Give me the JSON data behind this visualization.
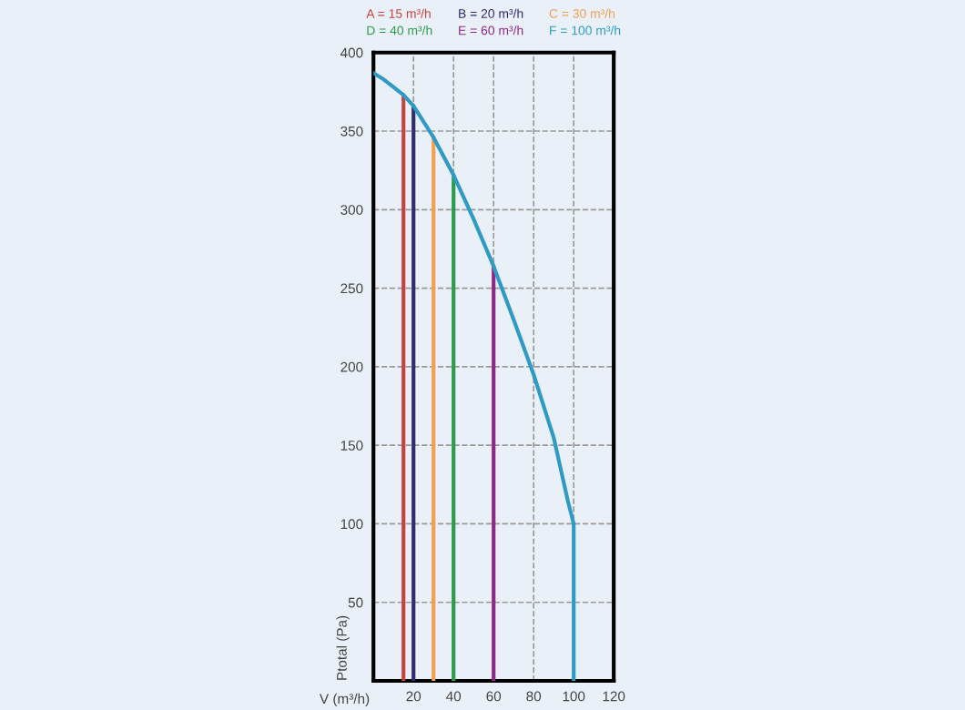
{
  "chart_data": {
    "type": "line",
    "xlabel": "V (m³/h)",
    "ylabel": "Ptotal (Pa)",
    "xlim": [
      0,
      120
    ],
    "xticks": [
      20,
      40,
      60,
      80,
      100,
      120
    ],
    "ylim": [
      0,
      400
    ],
    "yticks": [
      50,
      100,
      150,
      200,
      250,
      300,
      350,
      400
    ],
    "grid": true,
    "legend": "top",
    "line_style": "solid",
    "marker": "none",
    "series": [
      {
        "name": "A = 15 m³/h",
        "color": "#c8423f",
        "x": [
          15,
          15
        ],
        "values": [
          0,
          373
        ]
      },
      {
        "name": "B = 20 m³/h",
        "color": "#2b2f6b",
        "x": [
          20,
          20
        ],
        "values": [
          0,
          366
        ]
      },
      {
        "name": "C = 30 m³/h",
        "color": "#f0a050",
        "x": [
          30,
          30
        ],
        "values": [
          0,
          346
        ]
      },
      {
        "name": "D = 40 m³/h",
        "color": "#2e9a4c",
        "x": [
          40,
          40
        ],
        "values": [
          0,
          322
        ]
      },
      {
        "name": "E = 60 m³/h",
        "color": "#8e2a86",
        "x": [
          60,
          60
        ],
        "values": [
          0,
          264
        ]
      },
      {
        "name": "F = 100 m³/h",
        "color": "#2f9bc4",
        "x": [
          0,
          5,
          10,
          15,
          20,
          30,
          40,
          50,
          60,
          70,
          80,
          90,
          97,
          100,
          100
        ],
        "values": [
          387,
          383,
          378,
          373,
          366,
          346,
          322,
          294,
          264,
          230,
          195,
          155,
          115,
          100,
          0
        ]
      }
    ]
  }
}
